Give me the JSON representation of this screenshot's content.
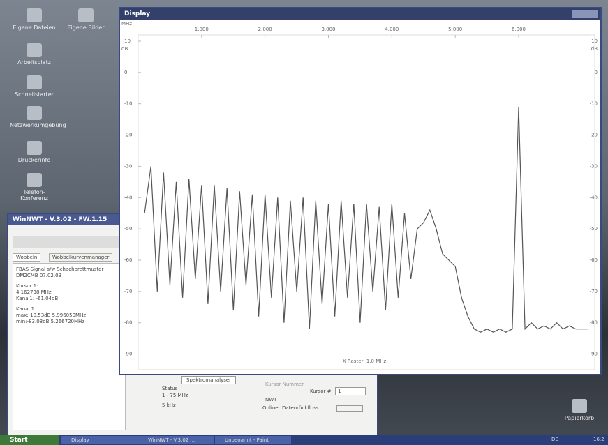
{
  "desktop": {
    "icons": [
      "Eigene Dateien",
      "Eigene Bilder",
      "Arbeitsplatz",
      "Schnellstarter",
      "Netzwerkumgebung",
      "Druckerinfo",
      "Telefon-Konferenz"
    ],
    "recycle_bin": "Papierkorb"
  },
  "display_window": {
    "title": "Display",
    "x_unit": "MHz",
    "y_unit": "dB",
    "raster": "X-Raster: 1.0 MHz"
  },
  "nwt_window": {
    "title": "WinNWT - V.3.02 - FW.1.15",
    "tabs": [
      "Wobbeln",
      "Wobbelkurvenmanager"
    ],
    "info": [
      "FBAS-Signal s/w Schachbrettmuster",
      "DM2CMB 07.02.09",
      "Kursor 1:",
      "4.162738 MHz",
      "Kanal1: -61.04dB",
      "Kanal 1",
      "max:-10.53dB 5.996050MHz",
      "min:-83.08dB 5.266720MHz"
    ],
    "mode": "Spektrumanalyser",
    "status_label": "Status",
    "range": "1 - 75 MHz",
    "step": "5 kHz",
    "cursor_label": "Kursor Nummer",
    "cursor_select": "Kursor #",
    "cursor_value": "1",
    "nwt_label": "NWT",
    "online": "Online",
    "data_flow": "Datenrückfluss"
  },
  "taskbar": {
    "start": "Start",
    "tasks": [
      "Display",
      "WinNWT - V.3.02 ...",
      "Unbenannt - Paint"
    ],
    "lang": "DE",
    "clock": "16:2"
  },
  "chart_data": {
    "type": "line",
    "x": [
      0.1,
      0.2,
      0.3,
      0.4,
      0.5,
      0.6,
      0.7,
      0.8,
      0.9,
      1.0,
      1.1,
      1.2,
      1.3,
      1.4,
      1.5,
      1.6,
      1.7,
      1.8,
      1.9,
      2.0,
      2.1,
      2.2,
      2.3,
      2.4,
      2.5,
      2.6,
      2.7,
      2.8,
      2.9,
      3.0,
      3.1,
      3.2,
      3.3,
      3.4,
      3.5,
      3.6,
      3.7,
      3.8,
      3.9,
      4.0,
      4.1,
      4.2,
      4.3,
      4.4,
      4.5,
      4.6,
      4.7,
      4.8,
      4.9,
      5.0,
      5.1,
      5.2,
      5.3,
      5.4,
      5.5,
      5.6,
      5.7,
      5.8,
      5.9,
      6.0,
      6.1,
      6.2,
      6.3,
      6.4,
      6.5,
      6.6,
      6.7,
      6.8,
      6.9,
      7.0,
      7.1
    ],
    "series": [
      {
        "color": "#555555",
        "values": [
          -45,
          -30,
          -70,
          -32,
          -68,
          -35,
          -72,
          -34,
          -66,
          -36,
          -74,
          -36,
          -70,
          -37,
          -76,
          -38,
          -68,
          -39,
          -78,
          -39,
          -72,
          -40,
          -80,
          -41,
          -70,
          -40,
          -82,
          -41,
          -74,
          -42,
          -78,
          -41,
          -72,
          -42,
          -80,
          -42,
          -70,
          -43,
          -76,
          -42,
          -72,
          -45,
          -66,
          -50,
          -48,
          -44,
          -50,
          -58,
          -60,
          -62,
          -72,
          -78,
          -82,
          -83,
          -82,
          -83,
          -82,
          -83,
          -82,
          -11,
          -82,
          -80,
          -82,
          -81,
          -82,
          -80,
          -82,
          -81,
          -82,
          -82,
          -82
        ]
      }
    ],
    "xlim": [
      0,
      7.2
    ],
    "xticks": [
      {
        "value": 1,
        "label": "1.000"
      },
      {
        "value": 2,
        "label": "2.000"
      },
      {
        "value": 3,
        "label": "3.000"
      },
      {
        "value": 4,
        "label": "4.000"
      },
      {
        "value": 5,
        "label": "5.000"
      },
      {
        "value": 6,
        "label": "6.000"
      }
    ],
    "ylim": [
      -95,
      12
    ],
    "yticks": [
      10,
      0,
      -10,
      -20,
      -30,
      -40,
      -50,
      -60,
      -70,
      -80,
      -90
    ]
  }
}
